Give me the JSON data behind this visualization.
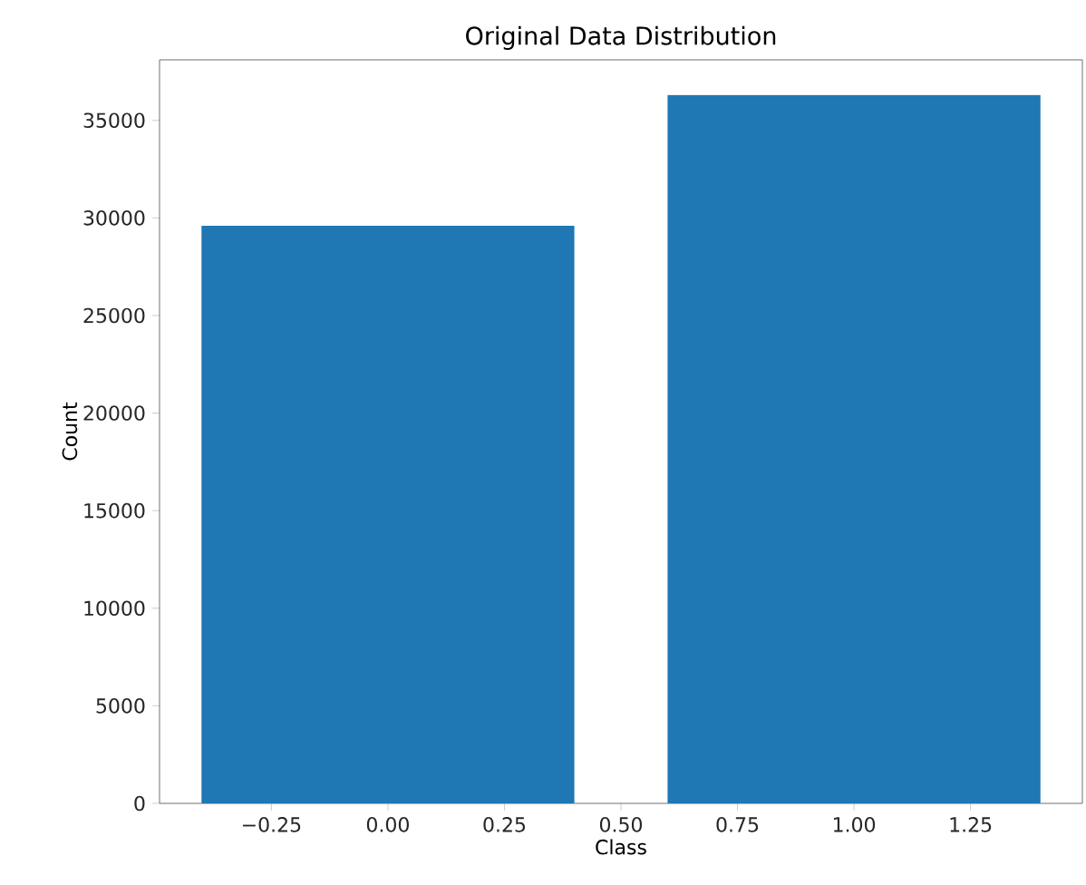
{
  "chart_data": {
    "type": "bar",
    "title": "Original Data Distribution",
    "xlabel": "Class",
    "ylabel": "Count",
    "x": [
      0,
      1
    ],
    "values": [
      29600,
      36300
    ],
    "color": "#1f77b4",
    "xlim": [
      -0.49,
      1.49
    ],
    "ylim": [
      0,
      38100
    ],
    "xticks": [
      {
        "value": -0.25,
        "label": "−0.25"
      },
      {
        "value": 0,
        "label": "0.00"
      },
      {
        "value": 0.25,
        "label": "0.25"
      },
      {
        "value": 0.5,
        "label": "0.50"
      },
      {
        "value": 0.75,
        "label": "0.75"
      },
      {
        "value": 1,
        "label": "1.00"
      },
      {
        "value": 1.25,
        "label": "1.25"
      }
    ],
    "yticks": [
      0,
      5000,
      10000,
      15000,
      20000,
      25000,
      30000,
      35000
    ]
  }
}
